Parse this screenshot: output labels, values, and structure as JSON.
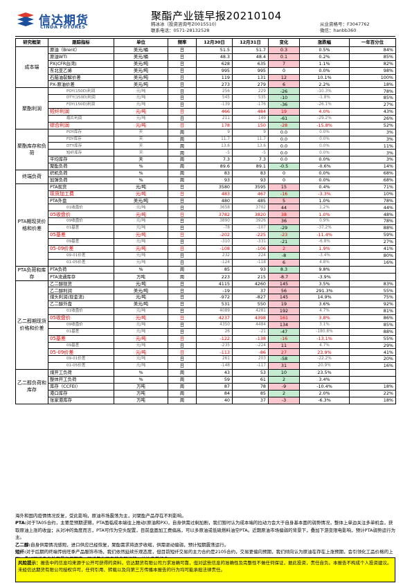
{
  "header": {
    "logo_cn": "信达期货",
    "logo_en": "CINDA FUTURES",
    "title": "聚酯产业链早报20210104",
    "author_line1": "韩冰冰（投资咨询号Z0015510）",
    "author_line2": "联系电话：0571-28132528",
    "qual_line1": "从业资格号：F3047762",
    "qual_line2": "微信：hanbb360"
  },
  "table": {
    "headers": [
      "研究框架",
      "跟踪指标",
      "单位",
      "频率",
      "12月30日",
      "12月31日",
      "变化",
      "涨跌幅",
      "一年百分位"
    ],
    "groups": [
      {
        "category": "成本端",
        "rows": [
          {
            "item": "原油（Brent）",
            "unit": "美元/桶",
            "freq": "日",
            "v1": "51.5",
            "v2": "51.7",
            "chg": "0.3",
            "pct": "0.5%",
            "pctile": "84%",
            "sign": "pos",
            "style": "normal"
          },
          {
            "item": "原油WTI",
            "unit": "美元/桶",
            "freq": "日",
            "v1": "48.3",
            "v2": "48.4",
            "chg": "0.1",
            "pct": "0.2%",
            "pctile": "85%",
            "sign": "pos",
            "style": "normal"
          },
          {
            "item": "PX(CFR台湾)",
            "unit": "美元/吨",
            "freq": "日",
            "v1": "628",
            "v2": "635",
            "chg": "7",
            "pct": "1.1%",
            "pctile": "82%",
            "sign": "pos",
            "style": "normal"
          },
          {
            "item": "东北亚乙烯",
            "unit": "美元/吨",
            "freq": "日",
            "v1": "995",
            "v2": "995",
            "chg": "0",
            "pct": "0.0%",
            "pctile": "98%",
            "sign": "zero",
            "style": "normal"
          },
          {
            "item": "石脑油裂解价差",
            "unit": "美元/吨",
            "freq": "日",
            "v1": "119",
            "v2": "131",
            "chg": "12",
            "pct": "10.1%",
            "pctile": "100%",
            "sign": "pos",
            "style": "normal"
          },
          {
            "item": "PX-原油价差",
            "unit": "美元/吨",
            "freq": "日",
            "v1": "273",
            "v2": "279",
            "chg": "6",
            "pct": "2.2%",
            "pctile": "18%",
            "sign": "pos",
            "style": "normal"
          }
        ]
      },
      {
        "category": "聚酯利润",
        "rows": [
          {
            "item": "POY(150D)利润",
            "unit": "元/吨",
            "freq": "日",
            "v1": "256",
            "v2": "229",
            "chg": "-26",
            "pct": "-10.3%",
            "pctile": "78%",
            "sign": "neg",
            "style": "sub"
          },
          {
            "item": "DTY(150D)利润",
            "unit": "元/吨",
            "freq": "日",
            "v1": "545",
            "v2": "535",
            "chg": "-10",
            "pct": "-1.8%",
            "pctile": "85%",
            "sign": "neg",
            "style": "sub"
          },
          {
            "item": "FDY(150D)利润",
            "unit": "元/吨",
            "freq": "日",
            "v1": "-139",
            "v2": "-176",
            "chg": "-36",
            "pct": "-26.1%",
            "pctile": "27%",
            "sign": "neg",
            "style": "sub"
          },
          {
            "item": "短纤利润",
            "unit": "元/吨",
            "freq": "日",
            "v1": "466",
            "v2": "484",
            "chg": "19",
            "pct": "4.0%",
            "pctile": "43%",
            "sign": "pos",
            "style": "red"
          },
          {
            "item": "瓶片利润",
            "unit": "元/吨",
            "freq": "日",
            "v1": "211",
            "v2": "149",
            "chg": "-61",
            "pct": "-29.2%",
            "pctile": "26%",
            "sign": "neg",
            "style": "sub"
          },
          {
            "item": "综合利润",
            "unit": "元/吨",
            "freq": "日",
            "v1": "178",
            "v2": "150",
            "chg": "-28",
            "pct": "-15.8%",
            "pctile": "52%",
            "sign": "neg",
            "style": "red"
          }
        ]
      },
      {
        "category": "聚酯库存和负荷",
        "rows": [
          {
            "item": "POY库存",
            "unit": "天",
            "freq": "周",
            "v1": "9",
            "v2": "9",
            "chg": "0.0",
            "pct": "0.0%",
            "pctile": "3%",
            "sign": "zero",
            "style": "sub"
          },
          {
            "item": "FDY库存",
            "unit": "天",
            "freq": "周",
            "v1": "11.7",
            "v2": "11.7",
            "chg": "0.0",
            "pct": "0.0%",
            "pctile": "3%",
            "sign": "zero",
            "style": "sub"
          },
          {
            "item": "DTY库存",
            "unit": "天",
            "freq": "周",
            "v1": "13.6",
            "v2": "13.6",
            "chg": "0.0",
            "pct": "0.0%",
            "pctile": "11%",
            "sign": "zero",
            "style": "sub"
          },
          {
            "item": "短纤库存",
            "unit": "天",
            "freq": "周",
            "v1": "-5",
            "v2": "-5",
            "chg": "0.0",
            "pct": "0.0%",
            "pctile": "3%",
            "sign": "zero",
            "style": "sub"
          },
          {
            "item": "平均库存",
            "unit": "天",
            "freq": "周",
            "v1": "7.3",
            "v2": "7.3",
            "chg": "0.0",
            "pct": "0.0%",
            "pctile": "3%",
            "sign": "zero",
            "style": "normal"
          },
          {
            "item": "聚酯负荷",
            "unit": "%",
            "freq": "周",
            "v1": "89.6",
            "v2": "89.1",
            "chg": "-0.5",
            "pct": "-0.6%",
            "pctile": "14%",
            "sign": "neg",
            "style": "normal"
          }
        ]
      },
      {
        "category": "终端负荷",
        "rows": [
          {
            "item": "织机负荷",
            "unit": "%",
            "freq": "周",
            "v1": "83",
            "v2": "83",
            "chg": "0",
            "pct": "0.0%",
            "pctile": "68%",
            "sign": "zero",
            "style": "normal"
          },
          {
            "item": "加弹负荷",
            "unit": "%",
            "freq": "周",
            "v1": "93",
            "v2": "93",
            "chg": "0",
            "pct": "0.0%",
            "pctile": "68%",
            "sign": "zero",
            "style": "normal"
          }
        ]
      },
      {
        "category": "PTA期现货价格和价差",
        "rows": [
          {
            "item": "PTA现货",
            "unit": "元/吨",
            "freq": "日",
            "v1": "3580",
            "v2": "3595",
            "chg": "15",
            "pct": "0.4%",
            "pctile": "71%",
            "sign": "pos",
            "style": "normal"
          },
          {
            "item": "现货加工费",
            "unit": "元/吨",
            "freq": "日",
            "v1": "483",
            "v2": "467",
            "chg": "-16",
            "pct": "-3.3%",
            "pctile": "10%",
            "sign": "neg",
            "style": "red"
          },
          {
            "item": "PTA外盘",
            "unit": "美元/吨",
            "freq": "日",
            "v1": "480",
            "v2": "485",
            "chg": "5",
            "pct": "1.0%",
            "pctile": "78%",
            "sign": "pos",
            "style": "normal"
          },
          {
            "item": "01收盘价",
            "unit": "元/吨",
            "freq": "日",
            "v1": "3658",
            "v2": "3702",
            "chg": "44",
            "pct": "1.2%",
            "pctile": "44%",
            "sign": "pos",
            "style": "sub"
          },
          {
            "item": "05收盘价",
            "unit": "元/吨",
            "freq": "日",
            "v1": "3782",
            "v2": "3820",
            "chg": "38",
            "pct": "1.0%",
            "pctile": "48%",
            "sign": "pos",
            "style": "red"
          },
          {
            "item": "09收盘价",
            "unit": "元/吨",
            "freq": "日",
            "v1": "3890",
            "v2": "3926",
            "chg": "36",
            "pct": "0.9%",
            "pctile": "78%",
            "sign": "pos",
            "style": "sub"
          },
          {
            "item": "01基差",
            "unit": "元/吨",
            "freq": "日",
            "v1": "-78",
            "v2": "-107",
            "chg": "-29",
            "pct": "-37.2%",
            "pctile": "88%",
            "sign": "neg",
            "style": "sub"
          },
          {
            "item": "05基差",
            "unit": "元/吨",
            "freq": "日",
            "v1": "-202",
            "v2": "-225",
            "chg": "-23",
            "pct": "-11.4%",
            "pctile": "59%",
            "sign": "neg",
            "style": "red"
          },
          {
            "item": "09基差",
            "unit": "元/吨",
            "freq": "日",
            "v1": "-310",
            "v2": "-331",
            "chg": "-21",
            "pct": "-6.8%",
            "pctile": "27%",
            "sign": "neg",
            "style": "sub"
          },
          {
            "item": "05-09价差",
            "unit": "元/吨",
            "freq": "日",
            "v1": "-108",
            "v2": "-106",
            "chg": "2",
            "pct": "1.9%",
            "pctile": "41%",
            "sign": "pos",
            "style": "red"
          },
          {
            "item": "09-01价差",
            "unit": "元/吨",
            "freq": "日",
            "v1": "232",
            "v2": "224",
            "chg": "-8",
            "pct": "-3.4%",
            "pctile": "80%",
            "sign": "neg",
            "style": "sub"
          },
          {
            "item": "01-05价差",
            "unit": "元/吨",
            "freq": "日",
            "v1": "-124",
            "v2": "-118",
            "chg": "6",
            "pct": "4.8%",
            "pctile": "16%",
            "sign": "pos",
            "style": "sub"
          }
        ]
      },
      {
        "category": "PTA负荷和库存",
        "rows": [
          {
            "item": "PTA负荷",
            "unit": "%",
            "freq": "周",
            "v1": "85",
            "v2": "93",
            "chg": "8.3",
            "pct": "9.8%",
            "pctile": "",
            "sign": "neg",
            "style": "normal"
          },
          {
            "item": "PTA流通库存",
            "unit": "万吨",
            "freq": "周",
            "v1": "223",
            "v2": "215",
            "chg": "-8.7",
            "pct": "-3.9%",
            "pctile": "",
            "sign": "pos",
            "style": "normal"
          }
        ]
      },
      {
        "category": "乙二醇期现货价格和价差",
        "rows": [
          {
            "item": "乙二醇现货",
            "unit": "元/吨",
            "freq": "日",
            "v1": "4115",
            "v2": "4260",
            "chg": "145",
            "pct": "3.5%",
            "pctile": "83%",
            "sign": "pos",
            "style": "normal"
          },
          {
            "item": "乙二醇利润",
            "unit": "美元/吨",
            "freq": "日",
            "v1": "-19",
            "v2": "37",
            "chg": "56",
            "pct": "291.3%",
            "pctile": "55%",
            "sign": "pos",
            "style": "normal"
          },
          {
            "item": "煤头利润(现金流)",
            "unit": "元/吨",
            "freq": "日",
            "v1": "-972",
            "v2": "-827",
            "chg": "145",
            "pct": "14.9%",
            "pctile": "75%",
            "sign": "pos",
            "style": "normal"
          },
          {
            "item": "乙二醇外盘",
            "unit": "美元/吨",
            "freq": "日",
            "v1": "531",
            "v2": "550",
            "chg": "19",
            "pct": "3.6%",
            "pctile": "92%",
            "sign": "pos",
            "style": "normal"
          },
          {
            "item": "01收盘价",
            "unit": "元/吨",
            "freq": "日",
            "v1": "4089",
            "v2": "4281",
            "chg": "192",
            "pct": "4.7%",
            "pctile": "81%",
            "sign": "pos",
            "style": "sub"
          },
          {
            "item": "05收盘价",
            "unit": "元/吨",
            "freq": "日",
            "v1": "4237",
            "v2": "4398",
            "chg": "161",
            "pct": "3.8%",
            "pctile": "86%",
            "sign": "pos",
            "style": "red"
          },
          {
            "item": "09收盘价",
            "unit": "元/吨",
            "freq": "日",
            "v1": "4350",
            "v2": "4484",
            "chg": "134",
            "pct": "3.1%",
            "pctile": "85%",
            "sign": "pos",
            "style": "sub"
          },
          {
            "item": "01基差",
            "unit": "元/吨",
            "freq": "日",
            "v1": "26",
            "v2": "-21",
            "chg": "-47",
            "pct": "-180.8%",
            "pctile": "88%",
            "sign": "neg",
            "style": "sub"
          },
          {
            "item": "05基差",
            "unit": "元/吨",
            "freq": "日",
            "v1": "-122",
            "v2": "-138",
            "chg": "-16",
            "pct": "-13.1%",
            "pctile": "55%",
            "sign": "neg",
            "style": "red"
          },
          {
            "item": "09基差",
            "unit": "元/吨",
            "freq": "日",
            "v1": "-235",
            "v2": "-224",
            "chg": "11",
            "pct": "4.7%",
            "pctile": "29%",
            "sign": "pos",
            "style": "sub"
          },
          {
            "item": "05-09价差",
            "unit": "元/吨",
            "freq": "日",
            "v1": "-113",
            "v2": "-86",
            "chg": "27",
            "pct": "23.9%",
            "pctile": "41%",
            "sign": "pos",
            "style": "red"
          },
          {
            "item": "09-01价差",
            "unit": "元/吨",
            "freq": "日",
            "v1": "261",
            "v2": "203",
            "chg": "-58",
            "pct": "-22.2%",
            "pctile": "20%",
            "sign": "neg",
            "style": "sub"
          },
          {
            "item": "01-05价差",
            "unit": "元/吨",
            "freq": "日",
            "v1": "-148",
            "v2": "-117",
            "chg": "31",
            "pct": "20.9%",
            "pctile": "16%",
            "sign": "pos",
            "style": "sub"
          }
        ]
      },
      {
        "category": "乙二醇负荷和库存",
        "rows": [
          {
            "item": "煤开工负荷",
            "unit": "%",
            "freq": "周",
            "v1": "43",
            "v2": "53",
            "chg": "10",
            "pct": "23.5%",
            "pctile": "",
            "sign": "neg",
            "style": "normal"
          },
          {
            "item": "整体开工负荷",
            "unit": "%",
            "freq": "周",
            "v1": "59",
            "v2": "61",
            "chg": "2",
            "pct": "3.4%",
            "pctile": "",
            "sign": "neg",
            "style": "normal"
          },
          {
            "item": "库存（CCFEI）",
            "unit": "万吨",
            "freq": "周",
            "v1": "87",
            "v2": "78",
            "chg": "-9",
            "pct": "-10.4%",
            "pctile": "18%",
            "sign": "pos",
            "style": "normal"
          },
          {
            "item": "港口库存",
            "unit": "万吨",
            "freq": "周",
            "v1": "84",
            "v2": "85",
            "chg": "2",
            "pct": "2.0%",
            "pctile": "22%",
            "sign": "neg",
            "style": "normal"
          },
          {
            "item": "张家港库存",
            "unit": "万吨",
            "freq": "周",
            "v1": "40",
            "v2": "37",
            "chg": "-3",
            "pct": "-6.3%",
            "pctile": "18%",
            "sign": "pos",
            "style": "normal"
          }
        ]
      }
    ]
  },
  "commentary": {
    "line0": "海外和国内疫情情况反复，受此影响，原油市场震荡为主，对聚酯产品存在不利影响。",
    "pta_label": "PTA:",
    "pta_text": "对于TA05合约，主要是预期逻辑，PTA面临成本端往上推动(原油和PX)，自身供需过剩加剧，我们暂时认为成本端的拉动力会大于自身基本面的弱势情况，整体上单边关注多单机会，获取原油上涨的收益；从对冲的角度而言，PTA可作为空头配置，目前盘面加工费偏高，可以多原油或低硫燃料油空PTA。近期原油市场偏弱的背景下，叠加下游变限电影响，预计PTA弱势运行为主。",
    "meg_label": "乙二醇:",
    "meg_text": "自身供需情况感观，进口供应已经恢复，聚酯需求将逐步收缩，供需驱动偏弱，预计短期震荡运行。",
    "psf_label": "短纤:",
    "psf_text": "对于后期的终端传统旺季产品服饰市场，我们依然延续乐观态度，但目前短纤交易的主力合约是2105合约，交易更偏向预期，我们倾向认为原油在存在上涨预期，会引领化工品价格的上涨，叠加短纤自身处在景气周期内，短纤是化工品的多配标的，关注多单机会。"
  },
  "risk": {
    "label": "风险提示：",
    "text": "报告中的信息均来源于公开可获得的资料，信达期货有限公司力求准确可靠，但对这些信息的准确性及完整性不做任何保证，据此投资，责任自负。本报告不构成个人投资建议。未经信达期货有限公司授权许可，任何引用、转载以及向第三方传播本报告的行为均可能承担法律责任。"
  }
}
